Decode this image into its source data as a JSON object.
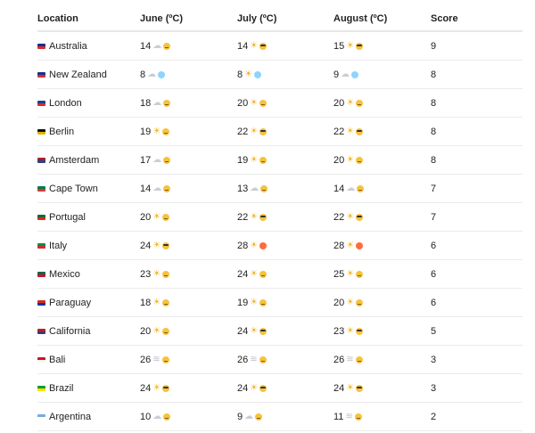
{
  "headers": {
    "location": "Location",
    "june": "June (ºC)",
    "july": "July (ºC)",
    "august": "August (ºC)",
    "score": "Score"
  },
  "rows": [
    {
      "location": "Australia",
      "flag_colors": [
        "#1a2f8f",
        "#d22f2f"
      ],
      "june": "14",
      "june_weather": "cloud",
      "june_mood": "plain",
      "july": "14",
      "july_weather": "sun",
      "july_mood": "cool",
      "august": "15",
      "august_weather": "sun",
      "august_mood": "cool",
      "score": "9"
    },
    {
      "location": "New Zealand",
      "flag_colors": [
        "#1a2f8f",
        "#d22f2f"
      ],
      "june": "8",
      "june_weather": "cloud",
      "june_mood": "cold",
      "july": "8",
      "july_weather": "sun",
      "july_mood": "cold",
      "august": "9",
      "august_weather": "cloud",
      "august_mood": "cold",
      "score": "8"
    },
    {
      "location": "London",
      "flag_colors": [
        "#243a8f",
        "#d22f2f"
      ],
      "june": "18",
      "june_weather": "cloud",
      "june_mood": "plain",
      "july": "20",
      "july_weather": "sun",
      "july_mood": "plain",
      "august": "20",
      "august_weather": "sun",
      "august_mood": "plain",
      "score": "8"
    },
    {
      "location": "Berlin",
      "flag_colors": [
        "#111111",
        "#e0b400"
      ],
      "june": "19",
      "june_weather": "sun",
      "june_mood": "plain",
      "july": "22",
      "july_weather": "sun",
      "july_mood": "cool",
      "august": "22",
      "august_weather": "sun",
      "august_mood": "cool",
      "score": "8"
    },
    {
      "location": "Amsterdam",
      "flag_colors": [
        "#ae1c28",
        "#21468b"
      ],
      "june": "17",
      "june_weather": "cloud",
      "june_mood": "plain",
      "july": "19",
      "july_weather": "sun",
      "july_mood": "plain",
      "august": "20",
      "august_weather": "sun",
      "august_mood": "plain",
      "score": "8"
    },
    {
      "location": "Cape Town",
      "flag_colors": [
        "#007a4d",
        "#de3831"
      ],
      "june": "14",
      "june_weather": "cloud",
      "june_mood": "plain",
      "july": "13",
      "july_weather": "cloud",
      "july_mood": "plain",
      "august": "14",
      "august_weather": "cloud",
      "august_mood": "plain",
      "score": "7"
    },
    {
      "location": "Portugal",
      "flag_colors": [
        "#046a38",
        "#da291c"
      ],
      "june": "20",
      "june_weather": "sun",
      "june_mood": "plain",
      "july": "22",
      "july_weather": "sun",
      "july_mood": "cool",
      "august": "22",
      "august_weather": "sun",
      "august_mood": "cool",
      "score": "7"
    },
    {
      "location": "Italy",
      "flag_colors": [
        "#009246",
        "#ce2b37"
      ],
      "june": "24",
      "june_weather": "sun",
      "june_mood": "cool",
      "july": "28",
      "july_weather": "sun",
      "july_mood": "angry",
      "august": "28",
      "august_weather": "sun",
      "august_mood": "angry",
      "score": "6"
    },
    {
      "location": "Mexico",
      "flag_colors": [
        "#006847",
        "#ce1126"
      ],
      "june": "23",
      "june_weather": "sun",
      "june_mood": "plain",
      "july": "24",
      "july_weather": "sun",
      "july_mood": "plain",
      "august": "25",
      "august_weather": "sun",
      "august_mood": "plain",
      "score": "6"
    },
    {
      "location": "Paraguay",
      "flag_colors": [
        "#d52b1e",
        "#0038a8"
      ],
      "june": "18",
      "june_weather": "sun",
      "june_mood": "plain",
      "july": "19",
      "july_weather": "sun",
      "july_mood": "plain",
      "august": "20",
      "august_weather": "sun",
      "august_mood": "plain",
      "score": "6"
    },
    {
      "location": "California",
      "flag_colors": [
        "#b22234",
        "#3c3b6e"
      ],
      "june": "20",
      "june_weather": "sun",
      "june_mood": "plain",
      "july": "24",
      "july_weather": "sun",
      "july_mood": "cool",
      "august": "23",
      "august_weather": "sun",
      "august_mood": "cool",
      "score": "5"
    },
    {
      "location": "Bali",
      "flag_colors": [
        "#ce1126",
        "#f5f5f5"
      ],
      "june": "26",
      "june_weather": "fog",
      "june_mood": "plain",
      "july": "26",
      "july_weather": "fog",
      "july_mood": "plain",
      "august": "26",
      "august_weather": "fog",
      "august_mood": "plain",
      "score": "3"
    },
    {
      "location": "Brazil",
      "flag_colors": [
        "#009c3b",
        "#ffdf00"
      ],
      "june": "24",
      "june_weather": "sun",
      "june_mood": "cool",
      "july": "24",
      "july_weather": "sun",
      "july_mood": "cool",
      "august": "24",
      "august_weather": "sun",
      "august_mood": "cool",
      "score": "3"
    },
    {
      "location": "Argentina",
      "flag_colors": [
        "#74acdf",
        "#ffffff"
      ],
      "june": "10",
      "june_weather": "cloud",
      "june_mood": "plain",
      "july": "9",
      "july_weather": "cloud",
      "july_mood": "plain",
      "august": "11",
      "august_weather": "fog",
      "august_mood": "plain",
      "score": "2"
    }
  ]
}
